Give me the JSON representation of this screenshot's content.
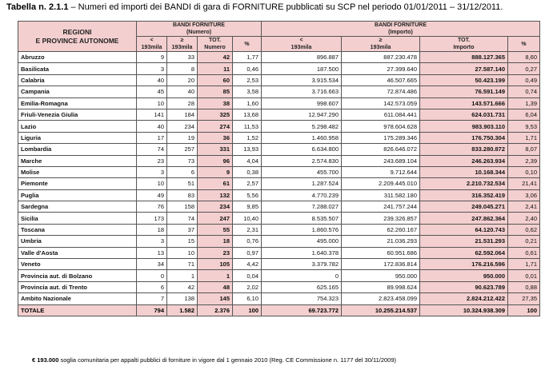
{
  "title": {
    "label": "Tabella n. 2.1.1",
    "text": " – Numeri ed importi dei BANDI di gara di FORNITURE pubblicati su SCP nel periodo 01/01/2011 – 31/12/2011."
  },
  "header": {
    "region": "REGIONI\nE PROVINCE AUTONOME",
    "group_numero": "BANDI FORNITURE\n(Numero)",
    "group_importo": "BANDI FORNITURE\n(Importo)",
    "lt": "<\n193mila",
    "ge": "≥\n193mila",
    "tot_numero": "TOT.\nNumero",
    "pct": "%",
    "tot_importo": "TOT.\nImporto"
  },
  "rows": [
    {
      "name": "Abruzzo",
      "n_lt": "9",
      "n_ge": "33",
      "n_tot": "42",
      "n_pct": "1,77",
      "i_lt": "896.887",
      "i_ge": "887.230.478",
      "i_tot": "888.127.365",
      "i_pct": "8,60"
    },
    {
      "name": "Basilicata",
      "n_lt": "3",
      "n_ge": "8",
      "n_tot": "11",
      "n_pct": "0,46",
      "i_lt": "187.500",
      "i_ge": "27.399.640",
      "i_tot": "27.587.140",
      "i_pct": "0,27"
    },
    {
      "name": "Calabria",
      "n_lt": "40",
      "n_ge": "20",
      "n_tot": "60",
      "n_pct": "2,53",
      "i_lt": "3.915.534",
      "i_ge": "46.507.665",
      "i_tot": "50.423.199",
      "i_pct": "0,49"
    },
    {
      "name": "Campania",
      "n_lt": "45",
      "n_ge": "40",
      "n_tot": "85",
      "n_pct": "3,58",
      "i_lt": "3.716.663",
      "i_ge": "72.874.486",
      "i_tot": "76.591.149",
      "i_pct": "0,74"
    },
    {
      "name": "Emilia-Romagna",
      "n_lt": "10",
      "n_ge": "28",
      "n_tot": "38",
      "n_pct": "1,60",
      "i_lt": "998.607",
      "i_ge": "142.573.059",
      "i_tot": "143.571.666",
      "i_pct": "1,39"
    },
    {
      "name": "Friuli-Venezia Giulia",
      "n_lt": "141",
      "n_ge": "184",
      "n_tot": "325",
      "n_pct": "13,68",
      "i_lt": "12.947.290",
      "i_ge": "611.084.441",
      "i_tot": "624.031.731",
      "i_pct": "6,04"
    },
    {
      "name": "Lazio",
      "n_lt": "40",
      "n_ge": "234",
      "n_tot": "274",
      "n_pct": "11,53",
      "i_lt": "5.298.482",
      "i_ge": "978.604.628",
      "i_tot": "983.903.110",
      "i_pct": "9,53"
    },
    {
      "name": "Liguria",
      "n_lt": "17",
      "n_ge": "19",
      "n_tot": "36",
      "n_pct": "1,52",
      "i_lt": "1.460.958",
      "i_ge": "175.289.346",
      "i_tot": "176.750.304",
      "i_pct": "1,71"
    },
    {
      "name": "Lombardia",
      "n_lt": "74",
      "n_ge": "257",
      "n_tot": "331",
      "n_pct": "13,93",
      "i_lt": "6.634.800",
      "i_ge": "826.646.072",
      "i_tot": "833.280.872",
      "i_pct": "8,07"
    },
    {
      "name": "Marche",
      "n_lt": "23",
      "n_ge": "73",
      "n_tot": "96",
      "n_pct": "4,04",
      "i_lt": "2.574.830",
      "i_ge": "243.689.104",
      "i_tot": "246.263.934",
      "i_pct": "2,39"
    },
    {
      "name": "Molise",
      "n_lt": "3",
      "n_ge": "6",
      "n_tot": "9",
      "n_pct": "0,38",
      "i_lt": "455.700",
      "i_ge": "9.712.644",
      "i_tot": "10.168.344",
      "i_pct": "0,10"
    },
    {
      "name": "Piemonte",
      "n_lt": "10",
      "n_ge": "51",
      "n_tot": "61",
      "n_pct": "2,57",
      "i_lt": "1.287.524",
      "i_ge": "2.209.445.010",
      "i_tot": "2.210.732.534",
      "i_pct": "21,41"
    },
    {
      "name": "Puglia",
      "n_lt": "49",
      "n_ge": "83",
      "n_tot": "132",
      "n_pct": "5,56",
      "i_lt": "4.770.239",
      "i_ge": "311.582.180",
      "i_tot": "316.352.419",
      "i_pct": "3,06"
    },
    {
      "name": "Sardegna",
      "n_lt": "76",
      "n_ge": "158",
      "n_tot": "234",
      "n_pct": "9,85",
      "i_lt": "7.288.027",
      "i_ge": "241.757.244",
      "i_tot": "249.045.271",
      "i_pct": "2,41"
    },
    {
      "name": "Sicilia",
      "n_lt": "173",
      "n_ge": "74",
      "n_tot": "247",
      "n_pct": "10,40",
      "i_lt": "8.535.507",
      "i_ge": "239.326.857",
      "i_tot": "247.862.364",
      "i_pct": "2,40"
    },
    {
      "name": "Toscana",
      "n_lt": "18",
      "n_ge": "37",
      "n_tot": "55",
      "n_pct": "2,31",
      "i_lt": "1.860.576",
      "i_ge": "62.260.167",
      "i_tot": "64.120.743",
      "i_pct": "0,62"
    },
    {
      "name": "Umbria",
      "n_lt": "3",
      "n_ge": "15",
      "n_tot": "18",
      "n_pct": "0,76",
      "i_lt": "495.000",
      "i_ge": "21.036.293",
      "i_tot": "21.531.293",
      "i_pct": "0,21"
    },
    {
      "name": "Valle d'Aosta",
      "n_lt": "13",
      "n_ge": "10",
      "n_tot": "23",
      "n_pct": "0,97",
      "i_lt": "1.640.378",
      "i_ge": "60.951.686",
      "i_tot": "62.592.064",
      "i_pct": "0,61"
    },
    {
      "name": "Veneto",
      "n_lt": "34",
      "n_ge": "71",
      "n_tot": "105",
      "n_pct": "4,42",
      "i_lt": "3.379.782",
      "i_ge": "172.836.814",
      "i_tot": "176.216.596",
      "i_pct": "1,71"
    },
    {
      "name": "Provincia aut. di Bolzano",
      "n_lt": "0",
      "n_ge": "1",
      "n_tot": "1",
      "n_pct": "0,04",
      "i_lt": "0",
      "i_ge": "950.000",
      "i_tot": "950.000",
      "i_pct": "0,01"
    },
    {
      "name": "Provincia aut. di Trento",
      "n_lt": "6",
      "n_ge": "42",
      "n_tot": "48",
      "n_pct": "2,02",
      "i_lt": "625.165",
      "i_ge": "89.998.624",
      "i_tot": "90.623.789",
      "i_pct": "0,88"
    },
    {
      "name": "Ambito Nazionale",
      "n_lt": "7",
      "n_ge": "138",
      "n_tot": "145",
      "n_pct": "6,10",
      "i_lt": "754.323",
      "i_ge": "2.823.458.099",
      "i_tot": "2.824.212.422",
      "i_pct": "27,35"
    }
  ],
  "total": {
    "name": "TOTALE",
    "n_lt": "794",
    "n_ge": "1.582",
    "n_tot": "2.376",
    "n_pct": "100",
    "i_lt": "69.723.772",
    "i_ge": "10.255.214.537",
    "i_tot": "10.324.938.309",
    "i_pct": "100"
  },
  "note": {
    "bold": "€ 193.000",
    "text": " soglia comunitaria per appalti pubblici di forniture in vigore dal 1 gennaio 2010 (Reg. CE Commissione n. 1177 del 30/11/2009)"
  },
  "colors": {
    "header_fill": "#f4cfcf",
    "border": "#555555"
  }
}
